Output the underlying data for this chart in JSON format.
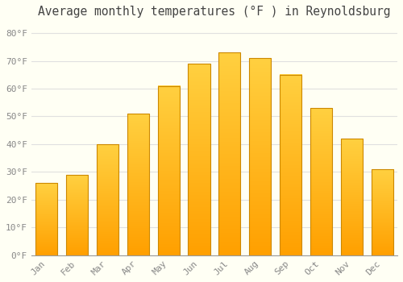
{
  "title": "Average monthly temperatures (°F ) in Reynoldsburg",
  "months": [
    "Jan",
    "Feb",
    "Mar",
    "Apr",
    "May",
    "Jun",
    "Jul",
    "Aug",
    "Sep",
    "Oct",
    "Nov",
    "Dec"
  ],
  "values": [
    26,
    29,
    40,
    51,
    61,
    69,
    73,
    71,
    65,
    53,
    42,
    31
  ],
  "bar_color_light": "#FFD040",
  "bar_color_dark": "#FFA000",
  "bar_edge_color": "#CC8800",
  "background_color": "#FFFFF4",
  "grid_color": "#E0E0E0",
  "yticks": [
    0,
    10,
    20,
    30,
    40,
    50,
    60,
    70,
    80
  ],
  "ytick_labels": [
    "0°F",
    "10°F",
    "20°F",
    "30°F",
    "40°F",
    "50°F",
    "60°F",
    "70°F",
    "80°F"
  ],
  "ylim": [
    0,
    84
  ],
  "title_fontsize": 10.5,
  "tick_fontsize": 8,
  "font_family": "monospace",
  "tick_color": "#888888",
  "title_color": "#444444",
  "bar_width": 0.72
}
